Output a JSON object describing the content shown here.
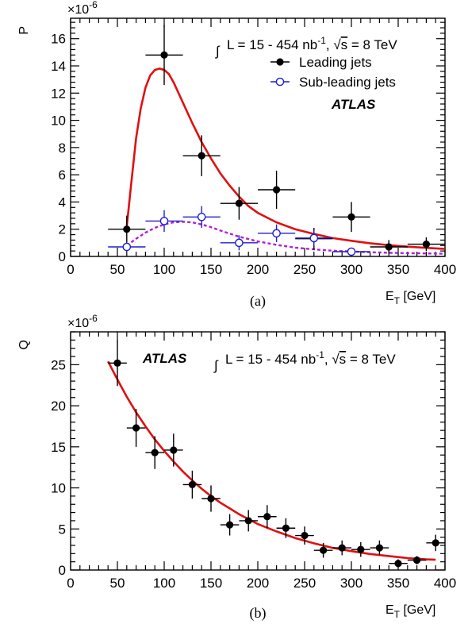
{
  "chart_data": [
    {
      "type": "scatter",
      "panel_caption": "(a)",
      "ylabel": "P",
      "y_multiplier": "×10",
      "y_multiplier_exp": "-6",
      "xlabel_main": "E",
      "xlabel_sub": "T",
      "xlabel_unit": " [GeV]",
      "xlim": [
        0,
        400
      ],
      "ylim": [
        0,
        17.5
      ],
      "xticks": [
        0,
        50,
        100,
        150,
        200,
        250,
        300,
        350,
        400
      ],
      "yticks": [
        0,
        2,
        4,
        6,
        8,
        10,
        12,
        14,
        16
      ],
      "atlas_label": "ATLAS",
      "lumi": {
        "prefix": "L = 15 - 454 nb",
        "sup": "-1",
        "mid": ", ",
        "root": "s",
        "suffix": " = 8 TeV"
      },
      "legend": [
        {
          "label": "Leading jets",
          "style": "filled",
          "color": "#000000"
        },
        {
          "label": "Sub-leading jets",
          "style": "open",
          "color": "#1f1fd0"
        }
      ],
      "series": [
        {
          "name": "Leading jets",
          "style": "filled",
          "color": "#000000",
          "points": [
            {
              "x": 60,
              "y": 2.0,
              "xerr": 20,
              "yerr": 1.0
            },
            {
              "x": 100,
              "y": 14.8,
              "xerr": 20,
              "yerr": 2.2
            },
            {
              "x": 140,
              "y": 7.4,
              "xerr": 20,
              "yerr": 1.5
            },
            {
              "x": 180,
              "y": 3.9,
              "xerr": 20,
              "yerr": 1.2
            },
            {
              "x": 220,
              "y": 4.9,
              "xerr": 20,
              "yerr": 1.4
            },
            {
              "x": 260,
              "y": 1.3,
              "xerr": 20,
              "yerr": 0.8
            },
            {
              "x": 300,
              "y": 2.9,
              "xerr": 20,
              "yerr": 1.1
            },
            {
              "x": 340,
              "y": 0.7,
              "xerr": 20,
              "yerr": 0.5
            },
            {
              "x": 380,
              "y": 0.9,
              "xerr": 20,
              "yerr": 0.5
            }
          ]
        },
        {
          "name": "Sub-leading jets",
          "style": "open",
          "color": "#1f1fd0",
          "points": [
            {
              "x": 60,
              "y": 0.7,
              "xerr": 20,
              "yerr": 0.35
            },
            {
              "x": 100,
              "y": 2.6,
              "xerr": 20,
              "yerr": 0.8
            },
            {
              "x": 140,
              "y": 2.9,
              "xerr": 20,
              "yerr": 0.8
            },
            {
              "x": 180,
              "y": 1.0,
              "xerr": 20,
              "yerr": 0.55
            },
            {
              "x": 220,
              "y": 1.7,
              "xerr": 20,
              "yerr": 0.65
            },
            {
              "x": 260,
              "y": 1.35,
              "xerr": 20,
              "yerr": 0.55
            },
            {
              "x": 300,
              "y": 0.35,
              "xerr": 20,
              "yerr": 0.25
            }
          ]
        }
      ],
      "curves": [
        {
          "color": "#e01010",
          "dashed": false,
          "points": [
            [
              60,
              2.2
            ],
            [
              65,
              5.5
            ],
            [
              70,
              8.7
            ],
            [
              75,
              10.9
            ],
            [
              80,
              12.4
            ],
            [
              85,
              13.3
            ],
            [
              90,
              13.7
            ],
            [
              95,
              13.8
            ],
            [
              100,
              13.7
            ],
            [
              105,
              13.4
            ],
            [
              110,
              12.8
            ],
            [
              120,
              11.3
            ],
            [
              130,
              9.8
            ],
            [
              140,
              8.4
            ],
            [
              150,
              7.2
            ],
            [
              160,
              6.1
            ],
            [
              170,
              5.2
            ],
            [
              180,
              4.4
            ],
            [
              190,
              3.7
            ],
            [
              200,
              3.2
            ],
            [
              220,
              2.5
            ],
            [
              240,
              2.0
            ],
            [
              260,
              1.65
            ],
            [
              280,
              1.35
            ],
            [
              300,
              1.15
            ],
            [
              320,
              0.97
            ],
            [
              340,
              0.83
            ],
            [
              360,
              0.72
            ],
            [
              380,
              0.63
            ],
            [
              400,
              0.55
            ]
          ]
        },
        {
          "color": "#b020d8",
          "dashed": true,
          "points": [
            [
              60,
              0.8
            ],
            [
              70,
              1.3
            ],
            [
              80,
              1.75
            ],
            [
              90,
              2.1
            ],
            [
              100,
              2.35
            ],
            [
              110,
              2.5
            ],
            [
              120,
              2.55
            ],
            [
              130,
              2.5
            ],
            [
              140,
              2.35
            ],
            [
              150,
              2.15
            ],
            [
              160,
              1.9
            ],
            [
              180,
              1.45
            ],
            [
              200,
              1.1
            ],
            [
              220,
              0.85
            ],
            [
              240,
              0.65
            ],
            [
              260,
              0.52
            ],
            [
              280,
              0.42
            ],
            [
              300,
              0.36
            ],
            [
              320,
              0.31
            ],
            [
              340,
              0.27
            ],
            [
              360,
              0.24
            ],
            [
              380,
              0.22
            ],
            [
              400,
              0.2
            ]
          ]
        }
      ]
    },
    {
      "type": "scatter",
      "panel_caption": "(b)",
      "ylabel": "Q",
      "y_multiplier": "×10",
      "y_multiplier_exp": "-6",
      "xlabel_main": "E",
      "xlabel_sub": "T",
      "xlabel_unit": " [GeV]",
      "xlim": [
        0,
        400
      ],
      "ylim": [
        0,
        29
      ],
      "xticks": [
        0,
        50,
        100,
        150,
        200,
        250,
        300,
        350,
        400
      ],
      "yticks": [
        0,
        5,
        10,
        15,
        20,
        25
      ],
      "atlas_label": "ATLAS",
      "lumi": {
        "prefix": "L = 15 - 454 nb",
        "sup": "-1",
        "mid": ", ",
        "root": "s",
        "suffix": " = 8 TeV"
      },
      "series": [
        {
          "name": "",
          "style": "filled",
          "color": "#000000",
          "points": [
            {
              "x": 50,
              "y": 25.2,
              "xerr": 10,
              "yerr": 2.8
            },
            {
              "x": 70,
              "y": 17.3,
              "xerr": 10,
              "yerr": 2.3
            },
            {
              "x": 90,
              "y": 14.3,
              "xerr": 10,
              "yerr": 2.0
            },
            {
              "x": 110,
              "y": 14.6,
              "xerr": 10,
              "yerr": 2.0
            },
            {
              "x": 130,
              "y": 10.4,
              "xerr": 10,
              "yerr": 1.7
            },
            {
              "x": 150,
              "y": 8.7,
              "xerr": 10,
              "yerr": 1.6
            },
            {
              "x": 170,
              "y": 5.5,
              "xerr": 10,
              "yerr": 1.3
            },
            {
              "x": 190,
              "y": 6.0,
              "xerr": 10,
              "yerr": 1.3
            },
            {
              "x": 210,
              "y": 6.5,
              "xerr": 10,
              "yerr": 1.4
            },
            {
              "x": 230,
              "y": 5.1,
              "xerr": 10,
              "yerr": 1.2
            },
            {
              "x": 250,
              "y": 4.2,
              "xerr": 10,
              "yerr": 1.1
            },
            {
              "x": 270,
              "y": 2.4,
              "xerr": 10,
              "yerr": 0.9
            },
            {
              "x": 290,
              "y": 2.7,
              "xerr": 10,
              "yerr": 0.9
            },
            {
              "x": 310,
              "y": 2.5,
              "xerr": 10,
              "yerr": 0.9
            },
            {
              "x": 330,
              "y": 2.7,
              "xerr": 10,
              "yerr": 0.9
            },
            {
              "x": 350,
              "y": 0.8,
              "xerr": 10,
              "yerr": 0.5
            },
            {
              "x": 370,
              "y": 1.2,
              "xerr": 10,
              "yerr": 0.5
            },
            {
              "x": 390,
              "y": 3.3,
              "xerr": 10,
              "yerr": 1.0
            }
          ]
        }
      ],
      "curves": [
        {
          "color": "#e01010",
          "dashed": false,
          "points": [
            [
              40,
              25.4
            ],
            [
              50,
              23.2
            ],
            [
              60,
              21.1
            ],
            [
              70,
              19.2
            ],
            [
              80,
              17.5
            ],
            [
              90,
              15.9
            ],
            [
              100,
              14.5
            ],
            [
              110,
              13.2
            ],
            [
              120,
              12.0
            ],
            [
              130,
              10.9
            ],
            [
              140,
              9.9
            ],
            [
              150,
              9.0
            ],
            [
              160,
              8.2
            ],
            [
              170,
              7.5
            ],
            [
              180,
              6.8
            ],
            [
              190,
              6.2
            ],
            [
              200,
              5.6
            ],
            [
              220,
              4.7
            ],
            [
              240,
              3.9
            ],
            [
              260,
              3.25
            ],
            [
              280,
              2.7
            ],
            [
              300,
              2.3
            ],
            [
              320,
              1.95
            ],
            [
              340,
              1.7
            ],
            [
              360,
              1.45
            ],
            [
              380,
              1.3
            ],
            [
              390,
              1.25
            ]
          ]
        }
      ]
    }
  ]
}
